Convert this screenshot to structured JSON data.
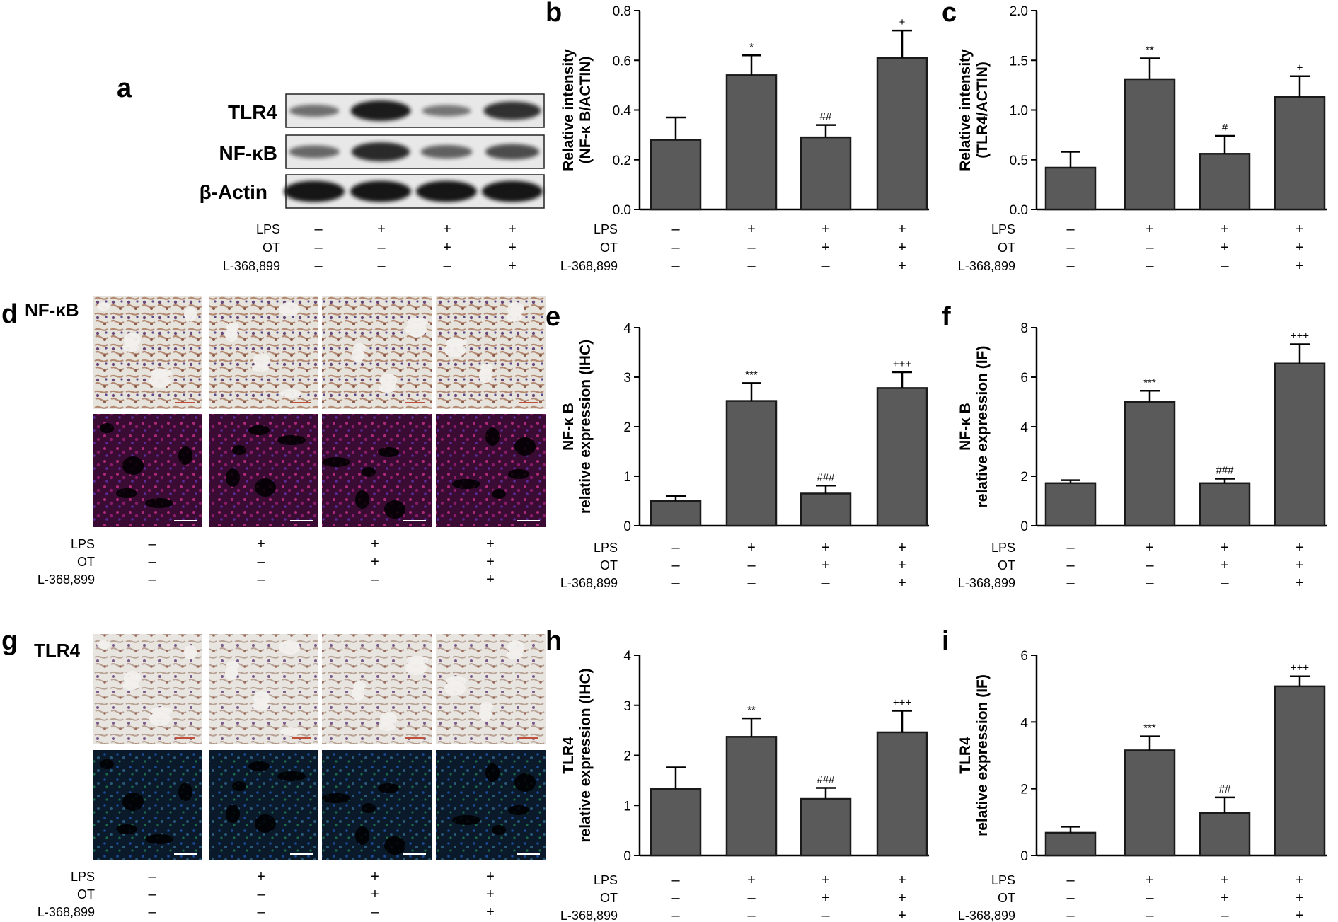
{
  "panel_letters": {
    "a": "a",
    "b": "b",
    "c": "c",
    "d": "d",
    "e": "e",
    "f": "f",
    "g": "g",
    "h": "h",
    "i": "i"
  },
  "western_blot": {
    "bands": [
      {
        "label": "TLR4",
        "intensity": [
          0.35,
          0.95,
          0.3,
          0.8
        ]
      },
      {
        "label": "NF-κB",
        "intensity": [
          0.4,
          0.85,
          0.45,
          0.6
        ]
      },
      {
        "label": "β-Actin",
        "intensity": [
          1.0,
          1.0,
          1.0,
          1.0
        ]
      }
    ]
  },
  "micrographs": {
    "d": {
      "label": "NF-κB",
      "ihc_tint": "#b07a62",
      "if_tint": "#8a1a6a"
    },
    "g": {
      "label": "TLR4",
      "ihc_tint": "#b49a8a",
      "if_tint": "#1a3a7a"
    }
  },
  "treatment_table": {
    "rows": [
      {
        "label": "LPS",
        "signs": [
          "–",
          "+",
          "+",
          "+"
        ]
      },
      {
        "label": "OT",
        "signs": [
          "–",
          "–",
          "+",
          "+"
        ]
      },
      {
        "label": "L-368,899",
        "signs": [
          "–",
          "–",
          "–",
          "+"
        ]
      }
    ]
  },
  "chart_data": [
    {
      "panel": "b",
      "type": "bar",
      "ylabel_lines": [
        "Relative intensity",
        "(NF-κ B/ACTIN)"
      ],
      "ylim": [
        0,
        0.8
      ],
      "yticks": [
        "0.0",
        "0.2",
        "0.4",
        "0.6",
        "0.8"
      ],
      "values": [
        0.28,
        0.54,
        0.29,
        0.61
      ],
      "errors": [
        0.09,
        0.08,
        0.05,
        0.11
      ],
      "annotations": [
        "",
        "*",
        "##",
        "+"
      ]
    },
    {
      "panel": "c",
      "type": "bar",
      "ylabel_lines": [
        "Relative intensity",
        "(TLR4/ACTIN)"
      ],
      "ylim": [
        0,
        2.0
      ],
      "yticks": [
        "0.0",
        "0.5",
        "1.0",
        "1.5",
        "2.0"
      ],
      "values": [
        0.42,
        1.31,
        0.56,
        1.13
      ],
      "errors": [
        0.16,
        0.21,
        0.18,
        0.21
      ],
      "annotations": [
        "",
        "**",
        "#",
        "+"
      ]
    },
    {
      "panel": "e",
      "type": "bar",
      "ylabel_lines": [
        "NF-κ B",
        "relative expression (IHC)"
      ],
      "ylim": [
        0,
        4
      ],
      "yticks": [
        "0",
        "1",
        "2",
        "3",
        "4"
      ],
      "values": [
        0.5,
        2.52,
        0.65,
        2.78
      ],
      "errors": [
        0.1,
        0.36,
        0.16,
        0.32
      ],
      "annotations": [
        "",
        "***",
        "###",
        "+++"
      ]
    },
    {
      "panel": "f",
      "type": "bar",
      "ylabel_lines": [
        "NF-κ B",
        "relative expression (IF)"
      ],
      "ylim": [
        0,
        8
      ],
      "yticks": [
        "0",
        "2",
        "4",
        "6",
        "8"
      ],
      "values": [
        1.72,
        5.0,
        1.72,
        6.55
      ],
      "errors": [
        0.12,
        0.45,
        0.18,
        0.78
      ],
      "annotations": [
        "",
        "***",
        "###",
        "+++"
      ]
    },
    {
      "panel": "h",
      "type": "bar",
      "ylabel_lines": [
        "TLR4",
        "relative expression (IHC)"
      ],
      "ylim": [
        0,
        4
      ],
      "yticks": [
        "0",
        "1",
        "2",
        "3",
        "4"
      ],
      "values": [
        1.33,
        2.37,
        1.13,
        2.46
      ],
      "errors": [
        0.43,
        0.37,
        0.22,
        0.43
      ],
      "annotations": [
        "",
        "**",
        "###",
        "+++"
      ]
    },
    {
      "panel": "i",
      "type": "bar",
      "ylabel_lines": [
        "TLR4",
        "relative expression (IF)"
      ],
      "ylim": [
        0,
        6
      ],
      "yticks": [
        "0",
        "2",
        "4",
        "6"
      ],
      "values": [
        0.68,
        3.15,
        1.27,
        5.07
      ],
      "errors": [
        0.18,
        0.42,
        0.47,
        0.3
      ],
      "annotations": [
        "",
        "***",
        "##",
        "+++"
      ]
    }
  ],
  "colors": {
    "bar_fill": "#5a5a5a",
    "bar_stroke": "#1a1a1a",
    "blot_band": "#141414",
    "blot_background": "#e8e8e8",
    "ihc_background": "#e0ddd8",
    "if_background": "#0a0a10"
  }
}
